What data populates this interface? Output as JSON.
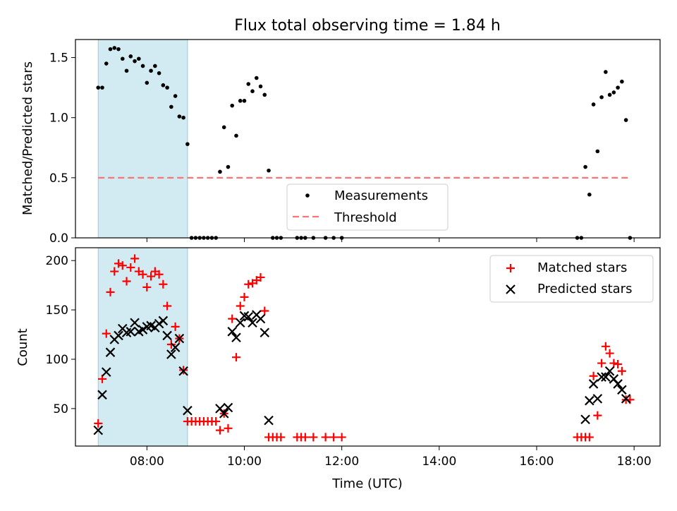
{
  "chart_data": [
    {
      "type": "scatter",
      "title": "Flux total observing time = 1.84 h",
      "xlabel": "",
      "ylabel": "Matched/Predicted stars",
      "xlim": [
        "06:32",
        "18:32"
      ],
      "ylim": [
        0,
        1.65
      ],
      "yticks": [
        "0.0",
        "0.5",
        "1.0",
        "1.5"
      ],
      "highlight_span": [
        "07:00",
        "08:50"
      ],
      "highlight_color": "#add8e6",
      "threshold": 0.5,
      "threshold_x": [
        "07:00",
        "17:55"
      ],
      "legend_position": "lower-center",
      "series": [
        {
          "name": "Measurements",
          "marker": "dot",
          "color": "#000000",
          "points": [
            [
              "07:00",
              1.25
            ],
            [
              "07:05",
              1.25
            ],
            [
              "07:10",
              1.45
            ],
            [
              "07:15",
              1.57
            ],
            [
              "07:20",
              1.58
            ],
            [
              "07:25",
              1.57
            ],
            [
              "07:30",
              1.49
            ],
            [
              "07:35",
              1.39
            ],
            [
              "07:40",
              1.51
            ],
            [
              "07:45",
              1.47
            ],
            [
              "07:50",
              1.49
            ],
            [
              "07:55",
              1.43
            ],
            [
              "08:00",
              1.29
            ],
            [
              "08:05",
              1.39
            ],
            [
              "08:10",
              1.43
            ],
            [
              "08:15",
              1.37
            ],
            [
              "08:20",
              1.27
            ],
            [
              "08:25",
              1.25
            ],
            [
              "08:30",
              1.09
            ],
            [
              "08:35",
              1.18
            ],
            [
              "08:40",
              1.01
            ],
            [
              "08:45",
              1.0
            ],
            [
              "08:50",
              0.78
            ],
            [
              "08:55",
              0.0
            ],
            [
              "09:00",
              0.0
            ],
            [
              "09:05",
              0.0
            ],
            [
              "09:10",
              0.0
            ],
            [
              "09:15",
              0.0
            ],
            [
              "09:20",
              0.0
            ],
            [
              "09:25",
              0.0
            ],
            [
              "09:30",
              0.55
            ],
            [
              "09:35",
              0.92
            ],
            [
              "09:40",
              0.59
            ],
            [
              "09:45",
              1.1
            ],
            [
              "09:50",
              0.85
            ],
            [
              "09:55",
              1.14
            ],
            [
              "10:00",
              1.14
            ],
            [
              "10:05",
              1.28
            ],
            [
              "10:10",
              1.22
            ],
            [
              "10:15",
              1.33
            ],
            [
              "10:20",
              1.26
            ],
            [
              "10:25",
              1.19
            ],
            [
              "10:30",
              0.56
            ],
            [
              "10:35",
              0.0
            ],
            [
              "10:40",
              0.0
            ],
            [
              "10:45",
              0.0
            ],
            [
              "11:05",
              0.0
            ],
            [
              "11:10",
              0.0
            ],
            [
              "11:15",
              0.0
            ],
            [
              "11:25",
              0.0
            ],
            [
              "11:40",
              0.0
            ],
            [
              "11:50",
              0.0
            ],
            [
              "12:00",
              0.0
            ],
            [
              "16:50",
              0.0
            ],
            [
              "16:55",
              0.0
            ],
            [
              "17:00",
              0.59
            ],
            [
              "17:05",
              0.36
            ],
            [
              "17:10",
              1.11
            ],
            [
              "17:15",
              0.72
            ],
            [
              "17:20",
              1.17
            ],
            [
              "17:25",
              1.38
            ],
            [
              "17:30",
              1.19
            ],
            [
              "17:35",
              1.21
            ],
            [
              "17:40",
              1.25
            ],
            [
              "17:45",
              1.3
            ],
            [
              "17:50",
              0.98
            ],
            [
              "17:55",
              0.0
            ]
          ]
        }
      ],
      "legend": [
        "Measurements",
        "Threshold"
      ]
    },
    {
      "type": "scatter",
      "title": "",
      "xlabel": "Time (UTC)",
      "ylabel": "Count",
      "xlim": [
        "06:32",
        "18:32"
      ],
      "ylim": [
        12,
        213
      ],
      "yticks": [
        "50",
        "100",
        "150",
        "200"
      ],
      "xticks": [
        "08:00",
        "10:00",
        "12:00",
        "14:00",
        "16:00",
        "18:00"
      ],
      "highlight_span": [
        "07:00",
        "08:50"
      ],
      "legend_position": "upper-right",
      "series": [
        {
          "name": "Matched stars",
          "marker": "plus",
          "color": "#ff0000",
          "points": [
            [
              "07:00",
              35
            ],
            [
              "07:05",
              80
            ],
            [
              "07:10",
              126
            ],
            [
              "07:15",
              168
            ],
            [
              "07:20",
              189
            ],
            [
              "07:25",
              197
            ],
            [
              "07:30",
              195
            ],
            [
              "07:35",
              179
            ],
            [
              "07:40",
              193
            ],
            [
              "07:45",
              202
            ],
            [
              "07:50",
              189
            ],
            [
              "07:55",
              186
            ],
            [
              "08:00",
              173
            ],
            [
              "08:05",
              184
            ],
            [
              "08:10",
              189
            ],
            [
              "08:15",
              186
            ],
            [
              "08:20",
              176
            ],
            [
              "08:25",
              154
            ],
            [
              "08:30",
              115
            ],
            [
              "08:35",
              133
            ],
            [
              "08:40",
              121
            ],
            [
              "08:45",
              89
            ],
            [
              "08:50",
              37
            ],
            [
              "08:55",
              37
            ],
            [
              "09:00",
              37
            ],
            [
              "09:05",
              37
            ],
            [
              "09:10",
              37
            ],
            [
              "09:15",
              37
            ],
            [
              "09:20",
              37
            ],
            [
              "09:25",
              37
            ],
            [
              "09:30",
              28
            ],
            [
              "09:35",
              45
            ],
            [
              "09:40",
              30
            ],
            [
              "09:45",
              141
            ],
            [
              "09:50",
              102
            ],
            [
              "09:55",
              154
            ],
            [
              "10:00",
              163
            ],
            [
              "10:05",
              176
            ],
            [
              "10:10",
              177
            ],
            [
              "10:15",
              180
            ],
            [
              "10:20",
              183
            ],
            [
              "10:25",
              149
            ],
            [
              "10:30",
              21
            ],
            [
              "10:35",
              21
            ],
            [
              "10:40",
              21
            ],
            [
              "10:45",
              21
            ],
            [
              "11:05",
              21
            ],
            [
              "11:10",
              21
            ],
            [
              "11:15",
              21
            ],
            [
              "11:25",
              21
            ],
            [
              "11:40",
              21
            ],
            [
              "11:50",
              21
            ],
            [
              "12:00",
              21
            ],
            [
              "16:50",
              21
            ],
            [
              "16:55",
              21
            ],
            [
              "17:00",
              21
            ],
            [
              "17:05",
              21
            ],
            [
              "17:10",
              83
            ],
            [
              "17:15",
              43
            ],
            [
              "17:20",
              96
            ],
            [
              "17:25",
              113
            ],
            [
              "17:30",
              106
            ],
            [
              "17:35",
              96
            ],
            [
              "17:40",
              95
            ],
            [
              "17:45",
              88
            ],
            [
              "17:50",
              59
            ],
            [
              "17:55",
              59
            ]
          ]
        },
        {
          "name": "Predicted stars",
          "marker": "x",
          "color": "#000000",
          "points": [
            [
              "07:00",
              28
            ],
            [
              "07:05",
              64
            ],
            [
              "07:10",
              87
            ],
            [
              "07:15",
              107
            ],
            [
              "07:20",
              120
            ],
            [
              "07:25",
              124
            ],
            [
              "07:30",
              131
            ],
            [
              "07:35",
              127
            ],
            [
              "07:40",
              128
            ],
            [
              "07:45",
              137
            ],
            [
              "07:50",
              128
            ],
            [
              "07:55",
              130
            ],
            [
              "08:00",
              133
            ],
            [
              "08:05",
              134
            ],
            [
              "08:10",
              132
            ],
            [
              "08:15",
              136
            ],
            [
              "08:20",
              139
            ],
            [
              "08:25",
              124
            ],
            [
              "08:30",
              105
            ],
            [
              "08:35",
              112
            ],
            [
              "08:40",
              121
            ],
            [
              "08:45",
              88
            ],
            [
              "08:50",
              48
            ],
            [
              "09:30",
              50
            ],
            [
              "09:35",
              45
            ],
            [
              "09:40",
              51
            ],
            [
              "09:45",
              128
            ],
            [
              "09:50",
              122
            ],
            [
              "09:55",
              137
            ],
            [
              "10:00",
              144
            ],
            [
              "10:05",
              143
            ],
            [
              "10:10",
              137
            ],
            [
              "10:15",
              145
            ],
            [
              "10:20",
              141
            ],
            [
              "10:25",
              127
            ],
            [
              "10:30",
              38
            ],
            [
              "17:00",
              39
            ],
            [
              "17:05",
              58
            ],
            [
              "17:10",
              75
            ],
            [
              "17:15",
              60
            ],
            [
              "17:20",
              82
            ],
            [
              "17:25",
              82
            ],
            [
              "17:30",
              88
            ],
            [
              "17:35",
              80
            ],
            [
              "17:40",
              75
            ],
            [
              "17:45",
              69
            ],
            [
              "17:50",
              60
            ]
          ]
        }
      ],
      "legend": [
        "Matched stars",
        "Predicted stars"
      ]
    }
  ]
}
